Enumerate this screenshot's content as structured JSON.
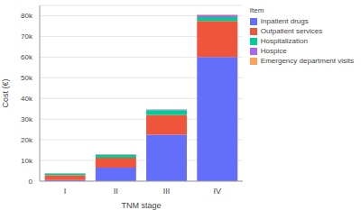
{
  "chart_data": {
    "type": "bar",
    "stacked": true,
    "grid": true,
    "legend": "right",
    "legend_title": "Item",
    "x_label": "TNM stage",
    "y_label": "Cost (€)",
    "categories": [
      "I",
      "II",
      "III",
      "IV"
    ],
    "ylim": [
      0,
      85000
    ],
    "yticks": [
      0,
      {
        "value": 10000,
        "label": "10k"
      },
      {
        "value": 20000,
        "label": "20k"
      },
      {
        "value": 30000,
        "label": "30k"
      },
      {
        "value": 40000,
        "label": "40k"
      },
      {
        "value": 50000,
        "label": "50k"
      },
      {
        "value": 60000,
        "label": "60k"
      },
      {
        "value": 70000,
        "label": "70k"
      },
      {
        "value": 80000,
        "label": "80k"
      }
    ],
    "series": [
      {
        "name": "Inpatient drugs",
        "color": "#636efa",
        "values": [
          500,
          6500,
          22500,
          60000
        ]
      },
      {
        "name": "Outpatient services",
        "color": "#ef553b",
        "values": [
          2300,
          4800,
          9500,
          17500
        ]
      },
      {
        "name": "Hospitalization",
        "color": "#00cc96",
        "values": [
          900,
          1500,
          2300,
          1800
        ]
      },
      {
        "name": "Hospice",
        "color": "#ab63fa",
        "values": [
          100,
          200,
          300,
          1000
        ]
      },
      {
        "name": "Emergency department visits",
        "color": "#ffa15a",
        "values": [
          100,
          100,
          100,
          300
        ]
      }
    ]
  }
}
